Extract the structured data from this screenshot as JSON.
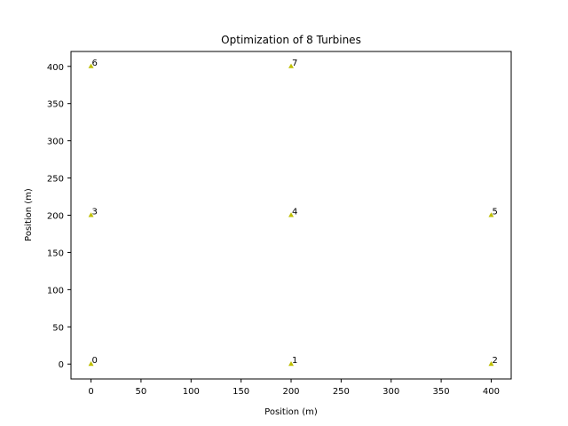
{
  "chart_data": {
    "type": "scatter",
    "title": "Optimization of 8 Turbines",
    "xlabel": "Position (m)",
    "ylabel": "Position (m)",
    "xlim": [
      -20,
      420
    ],
    "ylim": [
      -20,
      420
    ],
    "xticks": [
      0,
      50,
      100,
      150,
      200,
      250,
      300,
      350,
      400
    ],
    "yticks": [
      0,
      50,
      100,
      150,
      200,
      250,
      300,
      350,
      400
    ],
    "grid": false,
    "marker": "triangle",
    "marker_color": "#bfbf00",
    "points": [
      {
        "label": "0",
        "x": 0,
        "y": 0
      },
      {
        "label": "1",
        "x": 200,
        "y": 0
      },
      {
        "label": "2",
        "x": 400,
        "y": 0
      },
      {
        "label": "3",
        "x": 0,
        "y": 200
      },
      {
        "label": "4",
        "x": 200,
        "y": 200
      },
      {
        "label": "5",
        "x": 400,
        "y": 200
      },
      {
        "label": "6",
        "x": 0,
        "y": 400
      },
      {
        "label": "7",
        "x": 200,
        "y": 400
      }
    ]
  }
}
